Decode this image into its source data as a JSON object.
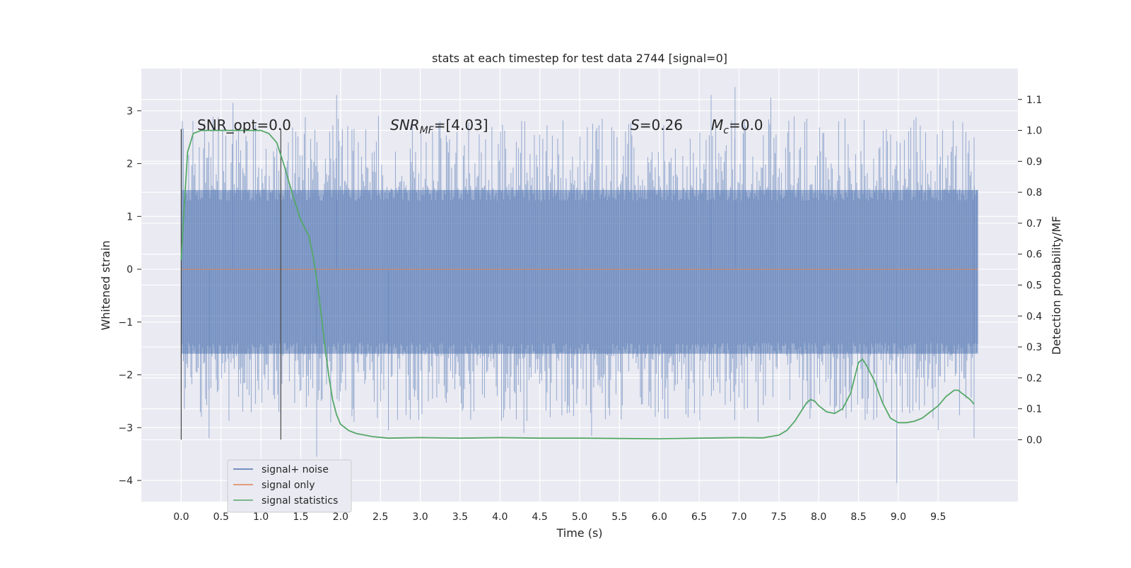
{
  "chart_data": {
    "type": "line",
    "title": "stats at each timestep for test data 2744 [signal=0]",
    "xlabel": "Time (s)",
    "ylabel": "Whitened strain",
    "y2label": "Detection probability/MF",
    "xlim": [
      -0.5,
      10.5
    ],
    "ylim": [
      -4.4,
      3.8
    ],
    "y2lim": [
      -0.2,
      1.2
    ],
    "xticks": [
      0.0,
      0.5,
      1.0,
      1.5,
      2.0,
      2.5,
      3.0,
      3.5,
      4.0,
      4.5,
      5.0,
      5.5,
      6.0,
      6.5,
      7.0,
      7.5,
      8.0,
      8.5,
      9.0,
      9.5
    ],
    "xtick_labels": [
      "0.0",
      "0.5",
      "1.0",
      "1.5",
      "2.0",
      "2.5",
      "3.0",
      "3.5",
      "4.0",
      "4.5",
      "5.0",
      "5.5",
      "6.0",
      "6.5",
      "7.0",
      "7.5",
      "8.0",
      "8.5",
      "9.0",
      "9.5"
    ],
    "yticks": [
      -4,
      -3,
      -2,
      -1,
      0,
      1,
      2,
      3
    ],
    "ytick_labels": [
      "−4",
      "−3",
      "−2",
      "−1",
      "0",
      "1",
      "2",
      "3"
    ],
    "y2ticks": [
      0.0,
      0.1,
      0.2,
      0.3,
      0.4,
      0.5,
      0.6,
      0.7,
      0.8,
      0.9,
      1.0,
      1.1
    ],
    "y2tick_labels": [
      "0.0",
      "0.1",
      "0.2",
      "0.3",
      "0.4",
      "0.5",
      "0.6",
      "0.7",
      "0.8",
      "0.9",
      "1.0",
      "1.1"
    ],
    "grid": true,
    "legend_position": "lower-left",
    "annotations": {
      "snr_opt": "SNR_opt=0.0",
      "snr_mf_base": "SNR",
      "snr_mf_sub": "MF",
      "snr_mf_value": "=[4.03]",
      "s_label": "S",
      "s_value": "=0.26",
      "mc_base": "M",
      "mc_sub": "c",
      "mc_value": "=0.0"
    },
    "vertical_markers": [
      0.0,
      1.25
    ],
    "series": [
      {
        "name": "signal+ noise",
        "color": "#4c72b0",
        "x_range": [
          0.0,
          10.0
        ],
        "summary": {
          "typical_min": -1.6,
          "typical_max": 1.5,
          "min": -4.05,
          "max": 3.45
        },
        "spikes": [
          {
            "x": 0.0,
            "y": -2.3
          },
          {
            "x": 0.35,
            "y": -3.2
          },
          {
            "x": 0.65,
            "y": 3.15
          },
          {
            "x": 1.2,
            "y": 2.3
          },
          {
            "x": 1.7,
            "y": -3.55
          },
          {
            "x": 1.95,
            "y": 3.3
          },
          {
            "x": 2.6,
            "y": -3.05
          },
          {
            "x": 4.3,
            "y": -3.1
          },
          {
            "x": 5.15,
            "y": -3.15
          },
          {
            "x": 6.65,
            "y": 3.3
          },
          {
            "x": 6.95,
            "y": 3.45
          },
          {
            "x": 7.4,
            "y": 3.25
          },
          {
            "x": 7.85,
            "y": 2.85
          },
          {
            "x": 8.85,
            "y": 2.65
          },
          {
            "x": 8.98,
            "y": -4.05
          },
          {
            "x": 9.5,
            "y": -3.05
          },
          {
            "x": 9.95,
            "y": 2.5
          },
          {
            "x": 9.95,
            "y": -3.2
          }
        ]
      },
      {
        "name": "signal only",
        "color": "#dd8452",
        "x": [
          0.0,
          10.0
        ],
        "y": [
          0.0,
          0.0
        ]
      },
      {
        "name": "signal statistics",
        "color": "#55a868",
        "axis": "right",
        "x": [
          0.0,
          0.03,
          0.08,
          0.15,
          0.25,
          0.4,
          0.6,
          0.8,
          1.0,
          1.1,
          1.2,
          1.3,
          1.4,
          1.5,
          1.6,
          1.65,
          1.7,
          1.75,
          1.8,
          1.85,
          1.9,
          1.95,
          2.0,
          2.1,
          2.2,
          2.4,
          2.6,
          3.0,
          3.5,
          4.0,
          4.5,
          5.0,
          5.5,
          6.0,
          6.5,
          7.0,
          7.3,
          7.5,
          7.6,
          7.7,
          7.8,
          7.85,
          7.9,
          7.95,
          8.0,
          8.1,
          8.2,
          8.3,
          8.4,
          8.45,
          8.5,
          8.55,
          8.6,
          8.7,
          8.8,
          8.9,
          9.0,
          9.1,
          9.2,
          9.3,
          9.4,
          9.5,
          9.6,
          9.7,
          9.75,
          9.8,
          9.9,
          9.95
        ],
        "y": [
          0.58,
          0.72,
          0.93,
          0.99,
          1.0,
          1.0,
          1.0,
          1.0,
          1.0,
          0.99,
          0.96,
          0.88,
          0.79,
          0.71,
          0.66,
          0.6,
          0.52,
          0.42,
          0.31,
          0.21,
          0.13,
          0.08,
          0.05,
          0.03,
          0.02,
          0.01,
          0.005,
          0.007,
          0.005,
          0.007,
          0.005,
          0.005,
          0.004,
          0.003,
          0.005,
          0.007,
          0.006,
          0.015,
          0.03,
          0.06,
          0.1,
          0.12,
          0.13,
          0.125,
          0.11,
          0.09,
          0.085,
          0.1,
          0.15,
          0.2,
          0.25,
          0.26,
          0.24,
          0.19,
          0.12,
          0.07,
          0.055,
          0.055,
          0.06,
          0.07,
          0.09,
          0.11,
          0.14,
          0.16,
          0.16,
          0.15,
          0.13,
          0.115
        ]
      }
    ]
  }
}
